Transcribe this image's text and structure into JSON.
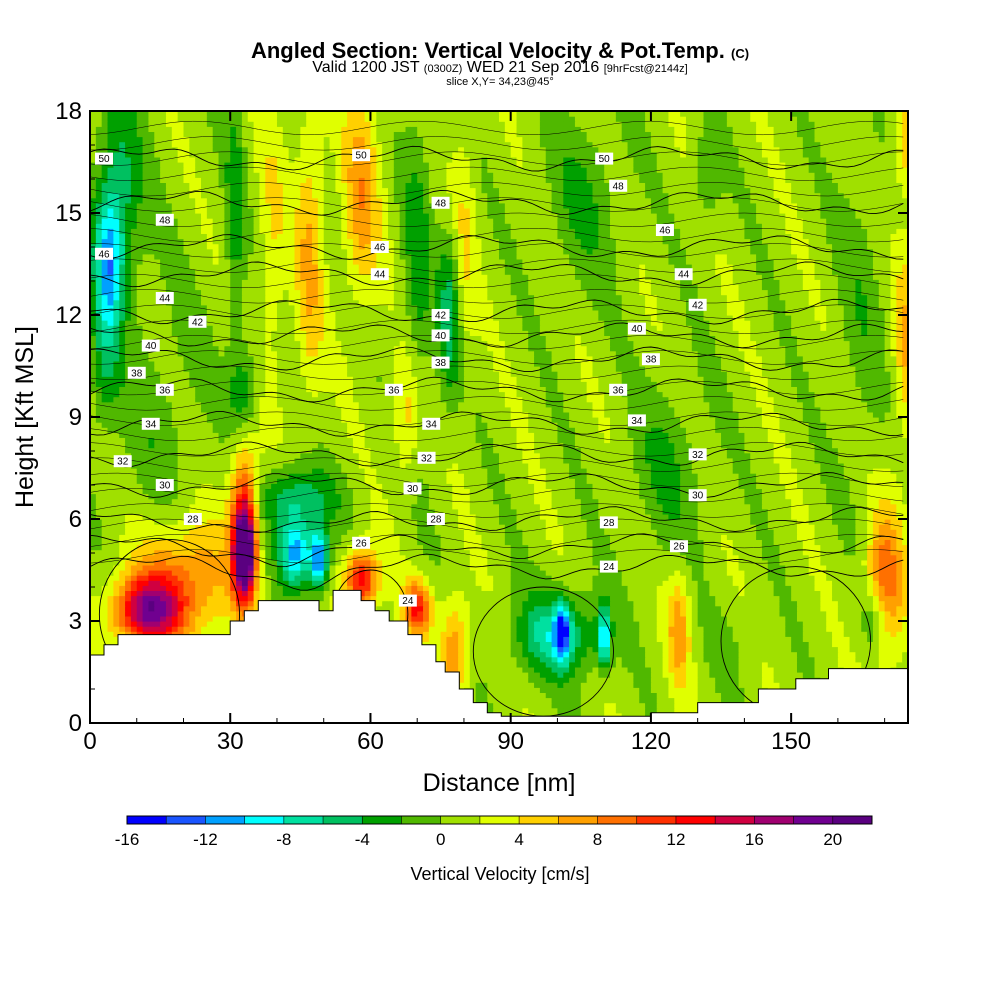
{
  "chart_data": {
    "type": "heatmap",
    "title": "Angled Section: Vertical Velocity & Pot.Temp.",
    "title_suffix": "(C)",
    "subtitle_main": "Valid 1200 JST",
    "subtitle_utc": "(0300Z)",
    "subtitle_date": "WED 21 Sep 2016",
    "subtitle_fcst": "[9hrFcst@2144z]",
    "slice_label": "slice X,Y= 34,23@45°",
    "xlabel": "Distance [nm]",
    "ylabel": "Height [Kft MSL]",
    "xlim": [
      0,
      175
    ],
    "ylim": [
      0,
      18
    ],
    "x_ticks": [
      0,
      30,
      60,
      90,
      120,
      150
    ],
    "y_ticks": [
      0,
      3,
      6,
      9,
      12,
      15,
      18
    ],
    "colorbar": {
      "label": "Vertical Velocity [cm/s]",
      "min": -16,
      "max": 22,
      "step": 2,
      "tick_values": [
        -16,
        -12,
        -8,
        -4,
        0,
        4,
        8,
        12,
        16,
        20
      ],
      "colors": [
        "#0000ff",
        "#1a55ff",
        "#00a0ff",
        "#00ffff",
        "#00e0a0",
        "#00c060",
        "#00a000",
        "#50b800",
        "#a0e000",
        "#e0ff00",
        "#ffd000",
        "#ffa000",
        "#ff7000",
        "#ff3000",
        "#ff0000",
        "#d00040",
        "#a00070",
        "#700090",
        "#5a0080"
      ]
    },
    "terrain": [
      [
        0,
        2
      ],
      [
        3,
        2
      ],
      [
        3,
        2.3
      ],
      [
        6,
        2.3
      ],
      [
        6,
        2.6
      ],
      [
        30,
        2.6
      ],
      [
        30,
        3
      ],
      [
        33,
        3
      ],
      [
        33,
        3.3
      ],
      [
        36,
        3.3
      ],
      [
        36,
        3.6
      ],
      [
        49,
        3.6
      ],
      [
        49,
        3.3
      ],
      [
        52,
        3.3
      ],
      [
        52,
        3.9
      ],
      [
        58,
        3.9
      ],
      [
        58,
        3.6
      ],
      [
        61,
        3.6
      ],
      [
        61,
        3.3
      ],
      [
        64,
        3.3
      ],
      [
        64,
        3
      ],
      [
        68,
        3
      ],
      [
        68,
        2.6
      ],
      [
        71,
        2.6
      ],
      [
        71,
        2.3
      ],
      [
        74,
        2.3
      ],
      [
        74,
        1.8
      ],
      [
        76,
        1.8
      ],
      [
        76,
        1.5
      ],
      [
        79,
        1.5
      ],
      [
        79,
        1
      ],
      [
        82,
        1
      ],
      [
        82,
        0.6
      ],
      [
        85,
        0.6
      ],
      [
        85,
        0.3
      ],
      [
        88,
        0.3
      ],
      [
        88,
        0.2
      ],
      [
        120,
        0.2
      ],
      [
        120,
        0.3
      ],
      [
        130,
        0.3
      ],
      [
        130,
        0.6
      ],
      [
        143,
        0.6
      ],
      [
        143,
        1
      ],
      [
        151,
        1
      ],
      [
        151,
        1.3
      ],
      [
        158,
        1.3
      ],
      [
        158,
        1.6
      ],
      [
        175,
        1.6
      ]
    ],
    "isentrope_labels": [
      "24",
      "26",
      "28",
      "30",
      "32",
      "34",
      "36",
      "38",
      "40",
      "42",
      "44",
      "46",
      "48",
      "50"
    ],
    "isentrope_values": [
      24,
      26,
      28,
      30,
      32,
      34,
      36,
      38,
      40,
      42,
      44,
      46,
      48,
      50
    ],
    "isentrope_heights": [
      4.6,
      5.2,
      6.0,
      7.0,
      7.9,
      8.8,
      9.8,
      10.7,
      11.4,
      12.1,
      13.2,
      14.0,
      15.3,
      16.6
    ],
    "isentrope_label_positions": [
      [
        [
          68,
          3.6
        ],
        [
          111,
          4.6
        ]
      ],
      [
        [
          58,
          5.3
        ],
        [
          126,
          5.2
        ]
      ],
      [
        [
          22,
          6.0
        ],
        [
          74,
          6.0
        ],
        [
          111,
          5.9
        ]
      ],
      [
        [
          16,
          7.0
        ],
        [
          69,
          6.9
        ],
        [
          130,
          6.7
        ]
      ],
      [
        [
          7,
          7.7
        ],
        [
          72,
          7.8
        ],
        [
          130,
          7.9
        ]
      ],
      [
        [
          13,
          8.8
        ],
        [
          73,
          8.8
        ],
        [
          117,
          8.9
        ]
      ],
      [
        [
          16,
          9.8
        ],
        [
          65,
          9.8
        ],
        [
          113,
          9.8
        ]
      ],
      [
        [
          10,
          10.3
        ],
        [
          75,
          10.6
        ],
        [
          120,
          10.7
        ]
      ],
      [
        [
          13,
          11.1
        ],
        [
          75,
          11.4
        ],
        [
          117,
          11.6
        ]
      ],
      [
        [
          23,
          11.8
        ],
        [
          75,
          12.0
        ],
        [
          130,
          12.3
        ]
      ],
      [
        [
          16,
          12.5
        ],
        [
          62,
          13.2
        ],
        [
          127,
          13.2
        ]
      ],
      [
        [
          3,
          13.8
        ],
        [
          62,
          14.0
        ],
        [
          123,
          14.5
        ]
      ],
      [
        [
          16,
          14.8
        ],
        [
          75,
          15.3
        ],
        [
          113,
          15.8
        ]
      ],
      [
        [
          3,
          16.6
        ],
        [
          58,
          16.7
        ],
        [
          110,
          16.6
        ]
      ]
    ],
    "velocity_features": [
      {
        "x": 12,
        "z": 3.3,
        "value": 15,
        "sx": 7,
        "sz": 1.0
      },
      {
        "x": 20,
        "z": 4.2,
        "value": 8,
        "sx": 10,
        "sz": 1.8
      },
      {
        "x": 33,
        "z": 5.0,
        "value": 21,
        "sx": 2.2,
        "sz": 1.3
      },
      {
        "x": 33,
        "z": 6.5,
        "value": 10,
        "sx": 3,
        "sz": 2.5
      },
      {
        "x": 44,
        "z": 5.0,
        "value": -12,
        "sx": 3.5,
        "sz": 1.0
      },
      {
        "x": 49,
        "z": 4.8,
        "value": -13,
        "sx": 2.0,
        "sz": 0.9
      },
      {
        "x": 44,
        "z": 6.6,
        "value": -7,
        "sx": 8,
        "sz": 1.0
      },
      {
        "x": 58,
        "z": 4.2,
        "value": 13,
        "sx": 3.5,
        "sz": 0.9
      },
      {
        "x": 70,
        "z": 3.4,
        "value": 11,
        "sx": 3,
        "sz": 0.8
      },
      {
        "x": 78,
        "z": 2.2,
        "value": 7,
        "sx": 3,
        "sz": 1.5
      },
      {
        "x": 100,
        "z": 2.6,
        "value": -8,
        "sx": 9,
        "sz": 1.2
      },
      {
        "x": 101,
        "z": 2.7,
        "value": -11,
        "sx": 1.5,
        "sz": 0.8
      },
      {
        "x": 110,
        "z": 2.5,
        "value": -10,
        "sx": 1.3,
        "sz": 0.9
      },
      {
        "x": 126,
        "z": 2.8,
        "value": 6,
        "sx": 2.5,
        "sz": 1.7
      },
      {
        "x": 137,
        "z": 2.3,
        "value": -1,
        "sx": 6,
        "sz": 1.2
      },
      {
        "x": 170,
        "z": 4.0,
        "value": 9,
        "sx": 4,
        "sz": 2.2
      },
      {
        "x": 168,
        "z": 3.0,
        "value": -5,
        "sx": 3,
        "sz": 1.0
      },
      {
        "x": 4,
        "z": 13.5,
        "value": -9,
        "sx": 3,
        "sz": 2.0
      },
      {
        "x": 6,
        "z": 15.5,
        "value": -6,
        "sx": 5,
        "sz": 3
      },
      {
        "x": 3,
        "z": 10.5,
        "value": -4,
        "sx": 3,
        "sz": 2.0
      },
      {
        "x": 31,
        "z": 15,
        "value": -4,
        "sx": 2,
        "sz": 4
      },
      {
        "x": 33,
        "z": 9.5,
        "value": -6,
        "sx": 3,
        "sz": 1.6
      },
      {
        "x": 39,
        "z": 14,
        "value": 3,
        "sx": 3,
        "sz": 4
      },
      {
        "x": 47,
        "z": 14,
        "value": 5,
        "sx": 3,
        "sz": 4.5
      },
      {
        "x": 58,
        "z": 15.5,
        "value": 6,
        "sx": 4,
        "sz": 3.2
      },
      {
        "x": 70,
        "z": 13,
        "value": -4,
        "sx": 3,
        "sz": 5
      },
      {
        "x": 77,
        "z": 12,
        "value": -6,
        "sx": 2.5,
        "sz": 2.5
      },
      {
        "x": 80,
        "z": 14,
        "value": 3,
        "sx": 2.5,
        "sz": 4
      },
      {
        "x": 68,
        "z": 9,
        "value": 5,
        "sx": 3,
        "sz": 2
      },
      {
        "x": 106,
        "z": 15.5,
        "value": -3,
        "sx": 8,
        "sz": 2.5
      },
      {
        "x": 124,
        "z": 7.5,
        "value": -3,
        "sx": 8,
        "sz": 2.5
      },
      {
        "x": 132,
        "z": 16,
        "value": -3,
        "sx": 3,
        "sz": 1.5
      },
      {
        "x": 165,
        "z": 12,
        "value": -2,
        "sx": 5,
        "sz": 5
      },
      {
        "x": 175,
        "z": 11,
        "value": 5,
        "sx": 3,
        "sz": 3
      },
      {
        "x": 175,
        "z": 17,
        "value": 5,
        "sx": 3,
        "sz": 1.5
      },
      {
        "x": 15,
        "z": 9,
        "value": -2,
        "sx": 10,
        "sz": 4
      }
    ],
    "background_value": 1
  }
}
